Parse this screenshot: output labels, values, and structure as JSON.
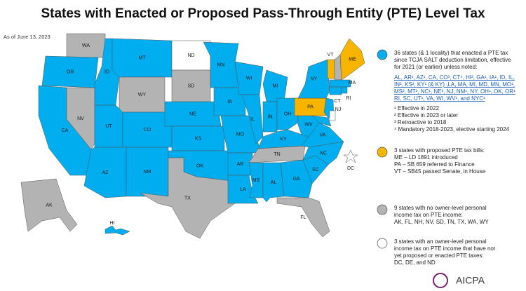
{
  "title": "States with Enacted or Proposed Pass-Through Entity (PTE) Level Tax",
  "date": "As of June 13, 2023",
  "states": [
    {
      "label": "WA",
      "color": "#b3b3b3"
    },
    {
      "label": "OR",
      "color": "#00aeef"
    },
    {
      "label": "CA",
      "color": "#00aeef"
    },
    {
      "label": "NV",
      "color": "#b3b3b3"
    },
    {
      "label": "ID",
      "color": "#00aeef"
    },
    {
      "label": "MT",
      "color": "#00aeef"
    },
    {
      "label": "WY",
      "color": "#b3b3b3"
    },
    {
      "label": "UT",
      "color": "#00aeef"
    },
    {
      "label": "CO",
      "color": "#00aeef"
    },
    {
      "label": "AZ",
      "color": "#00aeef"
    },
    {
      "label": "NM",
      "color": "#00aeef"
    },
    {
      "label": "ND",
      "color": "#ffffff"
    },
    {
      "label": "SD",
      "color": "#b3b3b3"
    },
    {
      "label": "NE",
      "color": "#00aeef"
    },
    {
      "label": "KS",
      "color": "#00aeef"
    },
    {
      "label": "OK",
      "color": "#00aeef"
    },
    {
      "label": "TX",
      "color": "#b3b3b3"
    },
    {
      "label": "MN",
      "color": "#00aeef"
    },
    {
      "label": "IA",
      "color": "#00aeef"
    },
    {
      "label": "MO",
      "color": "#00aeef"
    },
    {
      "label": "AR",
      "color": "#00aeef"
    },
    {
      "label": "LA",
      "color": "#00aeef"
    },
    {
      "label": "WI",
      "color": "#00aeef"
    },
    {
      "label": "IL",
      "color": "#00aeef"
    },
    {
      "label": "MI",
      "color": "#00aeef"
    },
    {
      "label": "IN",
      "color": "#00aeef"
    },
    {
      "label": "OH",
      "color": "#00aeef"
    },
    {
      "label": "KY",
      "color": "#00aeef"
    },
    {
      "label": "TN",
      "color": "#b3b3b3"
    },
    {
      "label": "MS",
      "color": "#00aeef"
    },
    {
      "label": "AL",
      "color": "#00aeef"
    },
    {
      "label": "GA",
      "color": "#00aeef"
    },
    {
      "label": "FL",
      "color": "#b3b3b3"
    },
    {
      "label": "SC",
      "color": "#00aeef"
    },
    {
      "label": "NC",
      "color": "#00aeef"
    },
    {
      "label": "VA",
      "color": "#00aeef"
    },
    {
      "label": "WV",
      "color": "#00aeef"
    },
    {
      "label": "PA",
      "color": "#f7b500"
    },
    {
      "label": "NY",
      "color": "#00aeef"
    },
    {
      "label": "VT",
      "color": "#f7b500"
    },
    {
      "label": "NH",
      "color": "#b3b3b3"
    },
    {
      "label": "ME",
      "color": "#f7b500"
    },
    {
      "label": "MA",
      "color": "#00aeef"
    },
    {
      "label": "CT",
      "color": "#00aeef"
    },
    {
      "label": "RI",
      "color": "#00aeef"
    },
    {
      "label": "NJ",
      "color": "#00aeef"
    },
    {
      "label": null,
      "color": "#00aeef"
    },
    {
      "label": null,
      "color": "#ffffff"
    },
    {
      "label": "DC",
      "color": "#ffffff"
    },
    {
      "label": "AK",
      "color": "#b3b3b3"
    },
    {
      "label": "HI",
      "color": "#00aeef"
    }
  ],
  "legend": [
    {
      "color": "#00aeef",
      "lines": [
        "36 states (& 1 locality) that enacted a PTE tax",
        "since TCJA SALT deduction limitation, effective",
        "for 2021 (or earlier) unless noted:"
      ],
      "links": [
        "AL, AR¹, AZ¹, CA, CO³, CT⁴, HI², GA¹, IA¹, ID, IL,",
        "IN², KS², KY¹ (& KY) ,LA, MA, MI, MD, MN, MO¹,",
        "MS², MT², NC¹, NE³, NJ, NM¹, NY, OH¹, OK, OR¹",
        "RI, SC, UT¹, VA, WI, WV¹, and NYC¹"
      ],
      "notes": [
        "¹ Effective in 2022",
        "² Effective in 2023 or later",
        "³ Retroactive to 2018",
        "⁴ Mandatory 2018-2023, elective starting 2024"
      ]
    },
    {
      "color": "#f7b500",
      "lines": [
        "3 states with proposed PTE tax bills:",
        "ME – LD 1891 introduced",
        "PA – SB 659 referred to Finance",
        "VT – SB45 passed Senate, in House"
      ]
    },
    {
      "color": "#b3b3b3",
      "lines": [
        "9 states with no owner-level personal",
        "income tax on PTE income:",
        "AK, FL, NH, NV, SD, TN, TX, WA, WY"
      ]
    },
    {
      "color": "#ffffff",
      "lines": [
        "3 states with an owner-level personal",
        "income tax on PTE income that have not",
        "yet proposed or enacted PTE taxes:",
        "DC, DE, and ND"
      ]
    }
  ],
  "logo": "AICPA"
}
